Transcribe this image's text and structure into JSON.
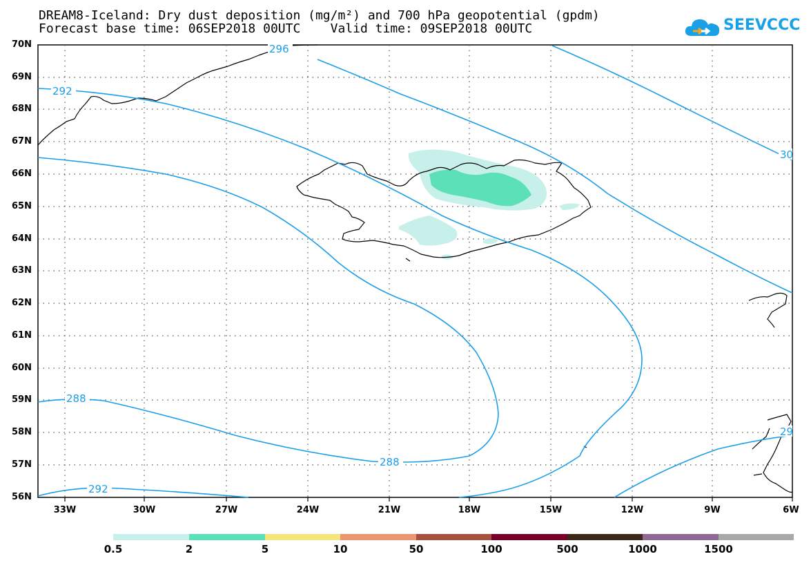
{
  "title": {
    "line1": "DREAM8-Iceland: Dry dust deposition (mg/m²) and 700 hPa geopotential (gpdm)",
    "line2": "Forecast base time: 06SEP2018 00UTC    Valid time: 09SEP2018 00UTC"
  },
  "logo": {
    "text": "SEEVCCC",
    "icon": "cloud-icon",
    "color": "#1aa0e6"
  },
  "map": {
    "lat_range": [
      "56N",
      "70N"
    ],
    "lon_range": [
      "34.5W",
      "6W"
    ],
    "lat_labels": [
      "70N",
      "69N",
      "68N",
      "67N",
      "66N",
      "65N",
      "64N",
      "63N",
      "62N",
      "61N",
      "60N",
      "59N",
      "58N",
      "57N",
      "56N"
    ],
    "lon_labels": [
      "33W",
      "30W",
      "27W",
      "24W",
      "21W",
      "18W",
      "15W",
      "12W",
      "9W",
      "6W"
    ],
    "contour_color": "#1a9ee8",
    "contour_labels": [
      "296",
      "292",
      "30",
      "288",
      "288",
      "292",
      "29"
    ],
    "dust_colors": [
      "#c8f0ea",
      "#5ce0b8"
    ]
  },
  "colorbar": {
    "colors": [
      "#c8f0ea",
      "#5ce0b8",
      "#f2e67a",
      "#ec9670",
      "#a85040",
      "#780028",
      "#3c2818",
      "#906898",
      "#a8a8a8"
    ],
    "labels": [
      "0.5",
      "2",
      "5",
      "10",
      "50",
      "100",
      "500",
      "1000",
      "1500"
    ]
  }
}
